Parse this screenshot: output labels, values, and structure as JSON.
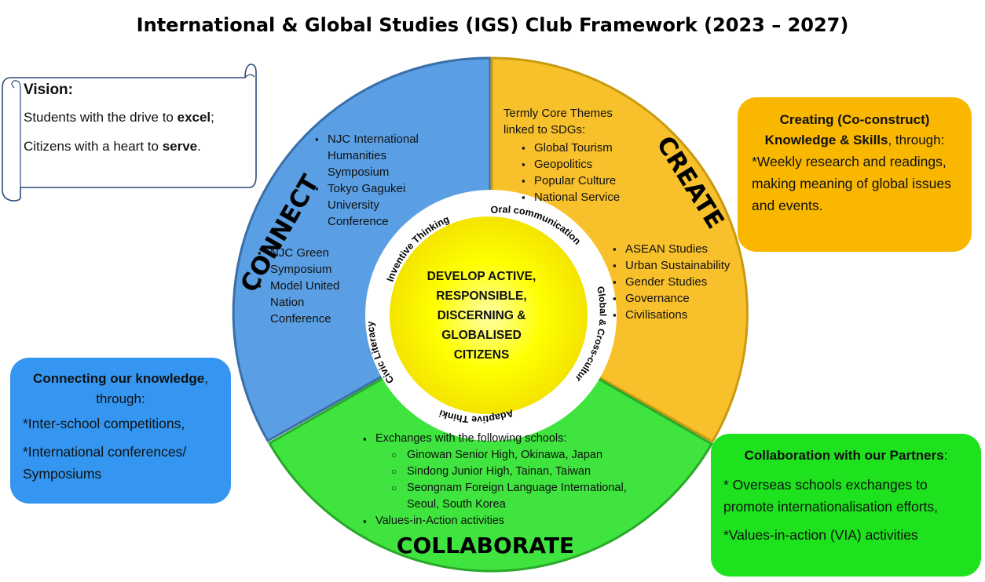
{
  "title": "International & Global Studies (IGS) Club Framework (2023 – 2027)",
  "vision": {
    "heading": "Vision:",
    "line1_a": "Students with the drive to ",
    "line1_b": "excel",
    "line1_c": ";",
    "line2_a": "Citizens with a heart to ",
    "line2_b": "serve",
    "line2_c": "."
  },
  "wheel": {
    "connect_label": "CONNECT",
    "create_label": "CREATE",
    "collaborate_label": "COLLABORATE",
    "colors": {
      "connect": "#5a9fe4",
      "create": "#f8c12c",
      "collaborate": "#3fe43f",
      "center": "#ffff00"
    },
    "center_lines": [
      "DEVELOP ACTIVE,",
      "RESPONSIBLE,",
      "DISCERNING &",
      "GLOBALISED",
      "CITIZENS"
    ],
    "ring_labels": {
      "inventive": "Inventive Thinking",
      "oral": "Oral communication",
      "global": "Global & Cross-cultural Literacy",
      "adaptive": "Adaptive Thinking",
      "civic": "Civic Literacy"
    }
  },
  "connect_items_top": [
    "NJC International Humanities Symposium",
    "Tokyo Gagukei University Conference"
  ],
  "connect_items_bottom": [
    "NJC Green Symposium",
    "Model United Nation Conference"
  ],
  "create_intro": "Termly Core Themes linked to SDGs:",
  "create_themes": [
    "Global Tourism",
    "Geopolitics",
    "Popular Culture",
    "National Service"
  ],
  "create_studies": [
    "ASEAN Studies",
    "Urban Sustainability",
    "Gender Studies",
    "Governance",
    "Civilisations"
  ],
  "collab": {
    "exchange": "Exchanges with the following schools:",
    "schools": [
      "Ginowan Senior High, Okinawa, Japan",
      "Sindong Junior High, Tainan, Taiwan",
      "Seongnam Foreign Language International, Seoul, South Korea"
    ],
    "via": "Values-in-Action activities"
  },
  "box_create": {
    "h1": "Creating (Co-construct)",
    "h2_bold": "Knowledge & Skills",
    "h2_rest": ", through:",
    "body": "*Weekly research and readings, making meaning of global issues and events."
  },
  "box_connect": {
    "h1_bold": "Connecting our knowledge",
    "h1_rest": ",",
    "h2": "through:",
    "b1": "*Inter-school competitions,",
    "b2": "*International conferences/ Symposiums"
  },
  "box_collab": {
    "h_bold": "Collaboration with our Partners",
    "h_rest": ":",
    "b1": "* Overseas schools exchanges to promote internationalisation efforts,",
    "b2": "*Values-in-action (VIA) activities"
  }
}
